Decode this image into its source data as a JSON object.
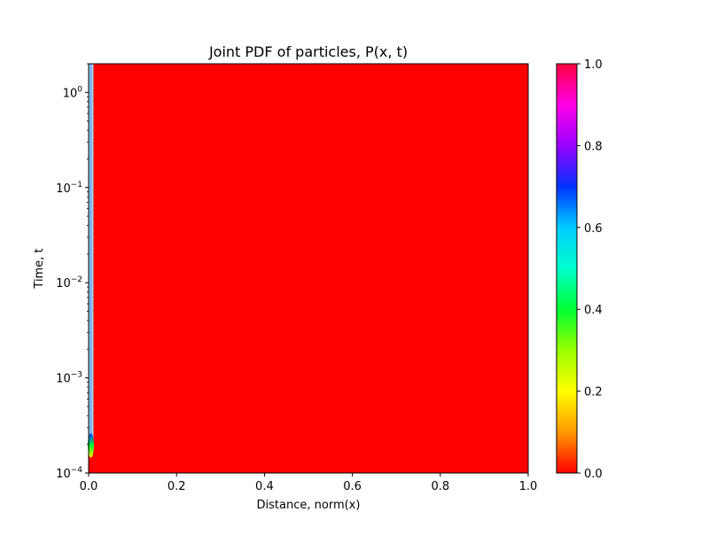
{
  "chart_data": {
    "type": "heatmap",
    "title": "Joint PDF of particles, P(x, t)",
    "xlabel": "Distance, norm(x)",
    "ylabel": "Time, t",
    "xlim": [
      0.0,
      1.0
    ],
    "ylim": [
      0.0001,
      2.0
    ],
    "yscale": "log",
    "x_ticks": [
      0.0,
      0.2,
      0.4,
      0.6,
      0.8,
      1.0
    ],
    "x_tick_labels": [
      "0.0",
      "0.2",
      "0.4",
      "0.6",
      "0.8",
      "1.0"
    ],
    "y_ticks": [
      0.0001,
      0.001,
      0.01,
      0.1,
      1
    ],
    "y_tick_labels": [
      {
        "base": "10",
        "exp": "−4"
      },
      {
        "base": "10",
        "exp": "−3"
      },
      {
        "base": "10",
        "exp": "−2"
      },
      {
        "base": "10",
        "exp": "−1"
      },
      {
        "base": "10",
        "exp": "0"
      }
    ],
    "grid": false,
    "colormap": "gist_rainbow_r",
    "background_value": 0.0,
    "colorbar": {
      "range": [
        0.0,
        1.0
      ],
      "ticks": [
        0.0,
        0.2,
        0.4,
        0.6,
        0.8,
        1.0
      ],
      "tick_labels": [
        "0.0",
        "0.2",
        "0.4",
        "0.6",
        "0.8",
        "1.0"
      ],
      "position": "right"
    },
    "features": [
      {
        "x": 0.005,
        "t_start": 0.00018,
        "t_end": 2.0,
        "value": 0.55
      },
      {
        "x": 0.005,
        "t_start": 0.00018,
        "t_end": 0.00025,
        "value": 0.3
      }
    ]
  }
}
